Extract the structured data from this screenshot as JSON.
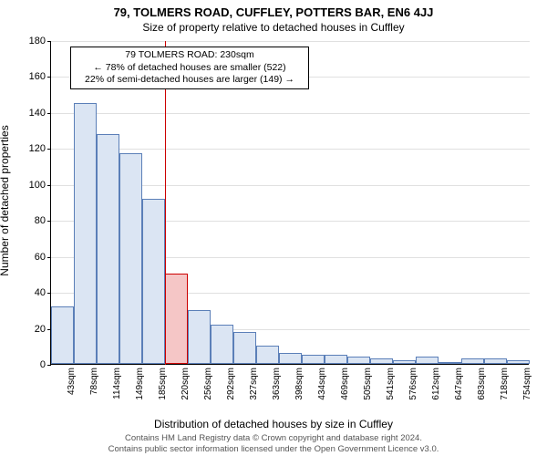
{
  "title": "79, TOLMERS ROAD, CUFFLEY, POTTERS BAR, EN6 4JJ",
  "subtitle": "Size of property relative to detached houses in Cuffley",
  "y_axis_label": "Number of detached properties",
  "x_axis_label": "Distribution of detached houses by size in Cuffley",
  "attribution_line1": "Contains HM Land Registry data © Crown copyright and database right 2024.",
  "attribution_line2": "Contains public sector information licensed under the Open Government Licence v3.0.",
  "annotation": {
    "line1": "79 TOLMERS ROAD: 230sqm",
    "line2": "← 78% of detached houses are smaller (522)",
    "line3": "22% of semi-detached houses are larger (149) →"
  },
  "chart": {
    "type": "histogram",
    "ylim": [
      0,
      180
    ],
    "ytick_step": 20,
    "bar_fill": "#dbe5f3",
    "bar_border": "#5b7fb8",
    "highlight_fill": "#f5c6c6",
    "highlight_border": "#cc0000",
    "grid_color": "#e0e0e0",
    "background": "#ffffff",
    "marker_color": "#cc0000",
    "marker_bin_index": 5,
    "x_labels": [
      "43sqm",
      "78sqm",
      "114sqm",
      "149sqm",
      "185sqm",
      "220sqm",
      "256sqm",
      "292sqm",
      "327sqm",
      "363sqm",
      "398sqm",
      "434sqm",
      "469sqm",
      "505sqm",
      "541sqm",
      "576sqm",
      "612sqm",
      "647sqm",
      "683sqm",
      "718sqm",
      "754sqm"
    ],
    "values": [
      32,
      145,
      128,
      117,
      92,
      50,
      30,
      22,
      18,
      10,
      6,
      5,
      5,
      4,
      3,
      2,
      4,
      1,
      3,
      3,
      2
    ],
    "highlight_index": 5,
    "title_fontsize": 13,
    "label_fontsize": 12,
    "tick_fontsize": 11
  }
}
